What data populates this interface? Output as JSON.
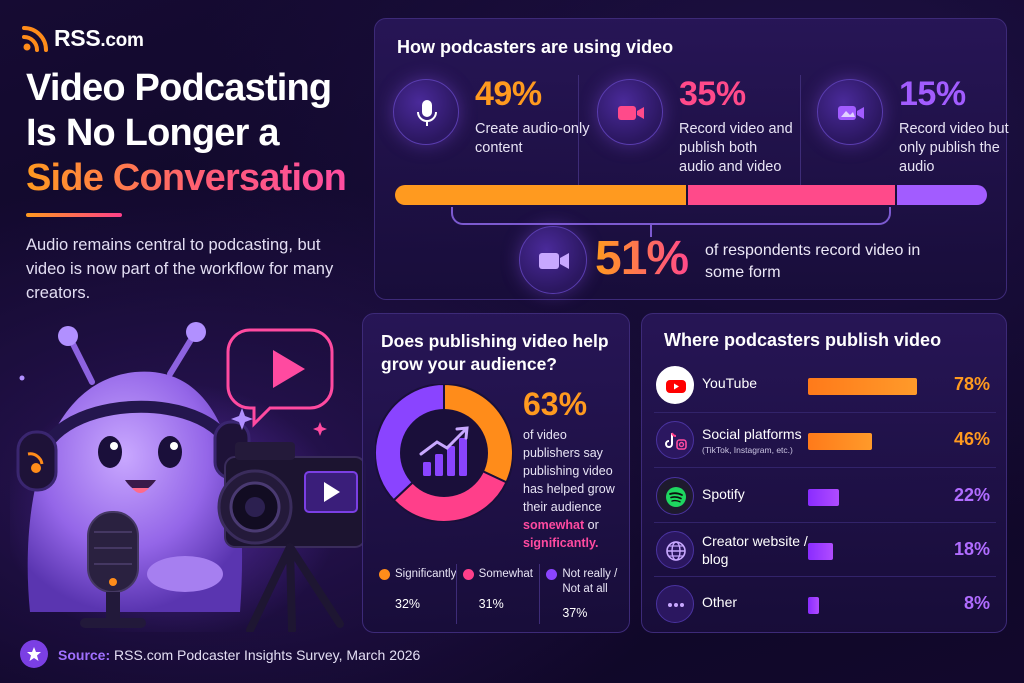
{
  "brand": {
    "name": "RSS",
    "suffix": ".com"
  },
  "hero": {
    "title_line1": "Video Podcasting",
    "title_line2": "Is No Longer a",
    "title_line3": "Side Conversation",
    "intro": "Audio remains central to podcasting, but video is now part of the workflow for many creators."
  },
  "usage": {
    "title": "How podcasters are using video",
    "stats": [
      {
        "pct": "49%",
        "desc": "Create audio-only content",
        "icon": "microphone-icon",
        "color": "#ff9a1f"
      },
      {
        "pct": "35%",
        "desc": "Record video and publish both audio and video",
        "icon": "video-camera-icon",
        "color": "#ff4a8a"
      },
      {
        "pct": "15%",
        "desc": "Record video but only publish the audio",
        "icon": "video-camera-icon",
        "color": "#a25cff"
      }
    ],
    "bar_share": [
      49,
      35,
      15
    ],
    "summary_pct": "51%",
    "summary_desc": "of respondents record video in some form"
  },
  "growth": {
    "title": "Does publishing video help grow your audience?",
    "pct": "63%",
    "desc_main": "of video publishers say publishing video has helped grow their audience",
    "desc_em1": "somewhat",
    "desc_or": "or",
    "desc_em2": "significantly.",
    "segments": [
      {
        "label": "Significantly",
        "value": "32%",
        "share": 32,
        "color": "#ff8c1a"
      },
      {
        "label": "Somewhat",
        "value": "31%",
        "share": 31,
        "color": "#ff3f8a"
      },
      {
        "label": "Not really / Not at all",
        "value": "37%",
        "share": 37,
        "color": "#8a44ff"
      }
    ]
  },
  "platforms": {
    "title": "Where podcasters publish video",
    "rows": [
      {
        "name": "YouTube",
        "sub": "",
        "pct": "78%",
        "share": 78,
        "icon": "youtube-icon",
        "color": "#ff8c1a"
      },
      {
        "name": "Social platforms",
        "sub": "(TikTok, Instagram, etc.)",
        "pct": "46%",
        "share": 46,
        "icon": "tiktok-instagram-icon",
        "color": "#ff8c1a"
      },
      {
        "name": "Spotify",
        "sub": "",
        "pct": "22%",
        "share": 22,
        "icon": "spotify-icon",
        "color": "#a23cff"
      },
      {
        "name": "Creator website / blog",
        "sub": "",
        "pct": "18%",
        "share": 18,
        "icon": "globe-icon",
        "color": "#a23cff"
      },
      {
        "name": "Other",
        "sub": "",
        "pct": "8%",
        "share": 8,
        "icon": "more-dots-icon",
        "color": "#a23cff"
      }
    ]
  },
  "footer": {
    "label": "Source:",
    "text": "RSS.com Podcaster Insights Survey, March 2026"
  }
}
